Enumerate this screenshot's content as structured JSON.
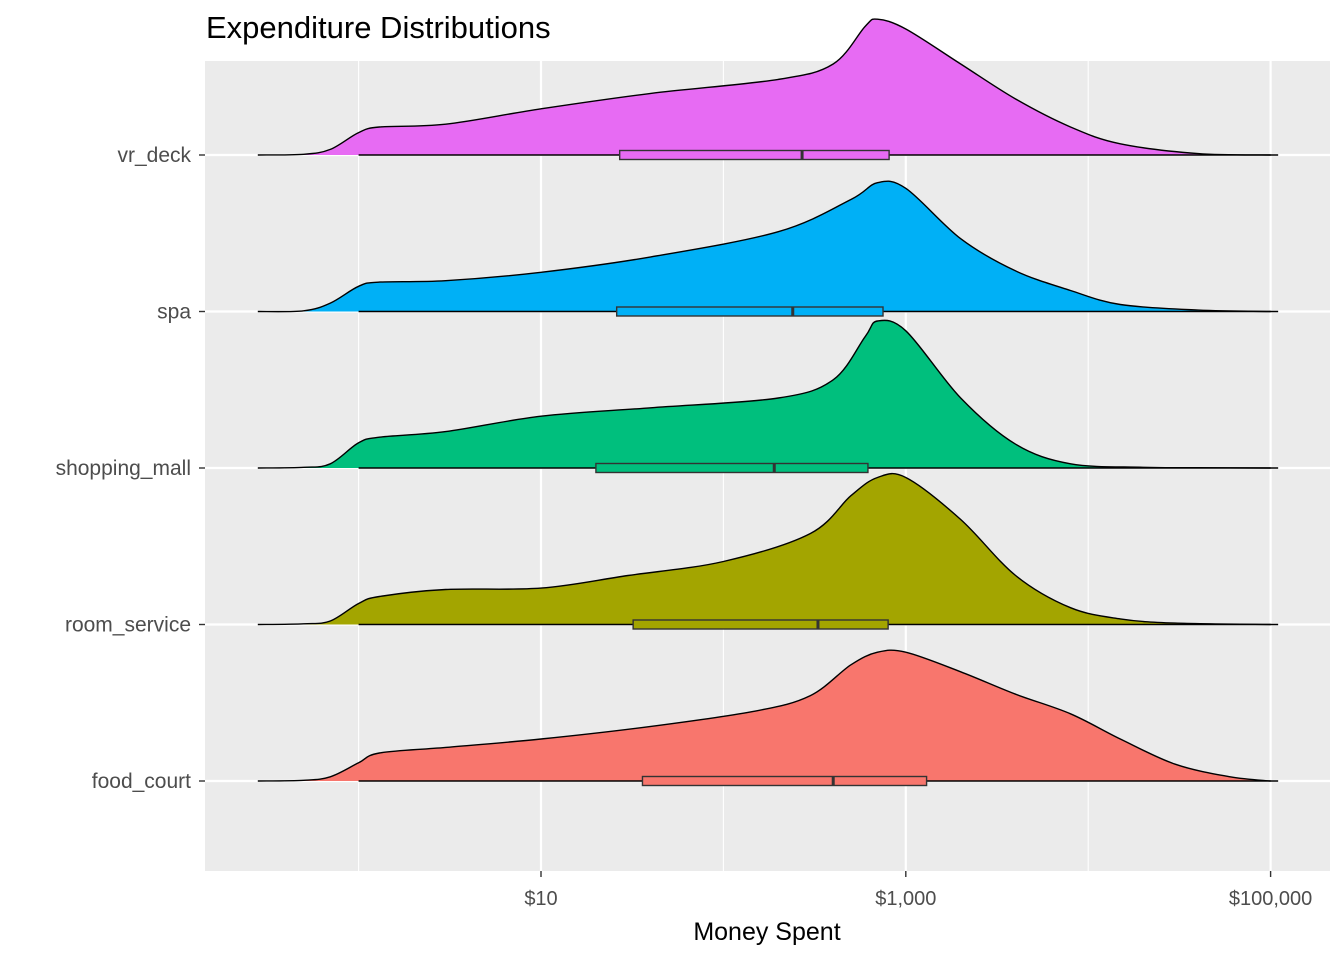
{
  "chart_data": {
    "type": "ridgeline-density-boxplot",
    "title": "Expenditure Distributions",
    "xlabel": "Money Spent",
    "ylabel": "",
    "x_scale": "log10",
    "xlim": [
      0.25,
      110000
    ],
    "x_ticks": [
      {
        "value": 10,
        "label": "$10"
      },
      {
        "value": 1000,
        "label": "$1,000"
      },
      {
        "value": 100000,
        "label": "$100,000"
      }
    ],
    "x_minor_gridlines": [
      1,
      100,
      10000
    ],
    "panel_background": "#ebebeb",
    "grid": true,
    "legend": "none",
    "series": [
      {
        "name": "food_court",
        "color": "#f8766d",
        "density_points": [
          [
            0.28,
            0
          ],
          [
            0.5,
            0.005
          ],
          [
            0.7,
            0.03
          ],
          [
            1,
            0.13
          ],
          [
            1.3,
            0.2
          ],
          [
            3,
            0.24
          ],
          [
            10,
            0.3
          ],
          [
            40,
            0.39
          ],
          [
            150,
            0.5
          ],
          [
            300,
            0.61
          ],
          [
            500,
            0.83
          ],
          [
            700,
            0.92
          ],
          [
            1000,
            0.92
          ],
          [
            2000,
            0.78
          ],
          [
            4000,
            0.62
          ],
          [
            8000,
            0.48
          ],
          [
            15000,
            0.3
          ],
          [
            30000,
            0.12
          ],
          [
            60000,
            0.03
          ],
          [
            100000,
            0
          ]
        ],
        "box": {
          "q1": 36,
          "median": 400,
          "q3": 1300,
          "whisker_low": 1,
          "whisker_high": 110000
        }
      },
      {
        "name": "room_service",
        "color": "#a3a500",
        "density_points": [
          [
            0.28,
            0
          ],
          [
            0.5,
            0.005
          ],
          [
            0.7,
            0.025
          ],
          [
            1,
            0.15
          ],
          [
            1.3,
            0.2
          ],
          [
            3,
            0.25
          ],
          [
            10,
            0.26
          ],
          [
            30,
            0.35
          ],
          [
            100,
            0.45
          ],
          [
            300,
            0.65
          ],
          [
            500,
            0.92
          ],
          [
            700,
            1.05
          ],
          [
            1000,
            1.05
          ],
          [
            2000,
            0.75
          ],
          [
            4000,
            0.35
          ],
          [
            8000,
            0.12
          ],
          [
            15000,
            0.04
          ],
          [
            30000,
            0.01
          ],
          [
            100000,
            0
          ]
        ],
        "box": {
          "q1": 32,
          "median": 330,
          "q3": 800,
          "whisker_low": 1,
          "whisker_high": 110000
        }
      },
      {
        "name": "shopping_mall",
        "color": "#00bf7d",
        "density_points": [
          [
            0.28,
            0
          ],
          [
            0.5,
            0.005
          ],
          [
            0.7,
            0.03
          ],
          [
            1,
            0.18
          ],
          [
            1.3,
            0.22
          ],
          [
            3,
            0.26
          ],
          [
            10,
            0.37
          ],
          [
            40,
            0.43
          ],
          [
            200,
            0.5
          ],
          [
            400,
            0.63
          ],
          [
            600,
            0.94
          ],
          [
            700,
            1.05
          ],
          [
            1000,
            0.98
          ],
          [
            2000,
            0.5
          ],
          [
            4000,
            0.17
          ],
          [
            8000,
            0.03
          ],
          [
            20000,
            0.005
          ],
          [
            40000,
            0.002
          ],
          [
            100000,
            0
          ]
        ],
        "box": {
          "q1": 20,
          "median": 190,
          "q3": 620,
          "whisker_low": 1,
          "whisker_high": 110000
        }
      },
      {
        "name": "spa",
        "color": "#00b0f6",
        "density_points": [
          [
            0.28,
            0
          ],
          [
            0.5,
            0.005
          ],
          [
            0.7,
            0.06
          ],
          [
            1,
            0.18
          ],
          [
            1.3,
            0.21
          ],
          [
            3,
            0.22
          ],
          [
            10,
            0.28
          ],
          [
            40,
            0.39
          ],
          [
            200,
            0.57
          ],
          [
            500,
            0.8
          ],
          [
            700,
            0.92
          ],
          [
            1000,
            0.88
          ],
          [
            2000,
            0.52
          ],
          [
            4000,
            0.29
          ],
          [
            8000,
            0.15
          ],
          [
            15000,
            0.05
          ],
          [
            40000,
            0.01
          ],
          [
            100000,
            0
          ]
        ],
        "box": {
          "q1": 26,
          "median": 240,
          "q3": 750,
          "whisker_low": 1,
          "whisker_high": 110000
        }
      },
      {
        "name": "vr_deck",
        "color": "#e76bf3",
        "density_points": [
          [
            0.28,
            0
          ],
          [
            0.5,
            0.005
          ],
          [
            0.7,
            0.04
          ],
          [
            1,
            0.16
          ],
          [
            1.3,
            0.2
          ],
          [
            3,
            0.22
          ],
          [
            10,
            0.33
          ],
          [
            40,
            0.44
          ],
          [
            200,
            0.54
          ],
          [
            400,
            0.65
          ],
          [
            600,
            0.92
          ],
          [
            700,
            0.97
          ],
          [
            1000,
            0.9
          ],
          [
            2000,
            0.65
          ],
          [
            4000,
            0.4
          ],
          [
            8000,
            0.2
          ],
          [
            15000,
            0.08
          ],
          [
            40000,
            0.01
          ],
          [
            100000,
            0
          ]
        ],
        "box": {
          "q1": 27,
          "median": 270,
          "q3": 810,
          "whisker_low": 1,
          "whisker_high": 110000
        }
      }
    ]
  }
}
